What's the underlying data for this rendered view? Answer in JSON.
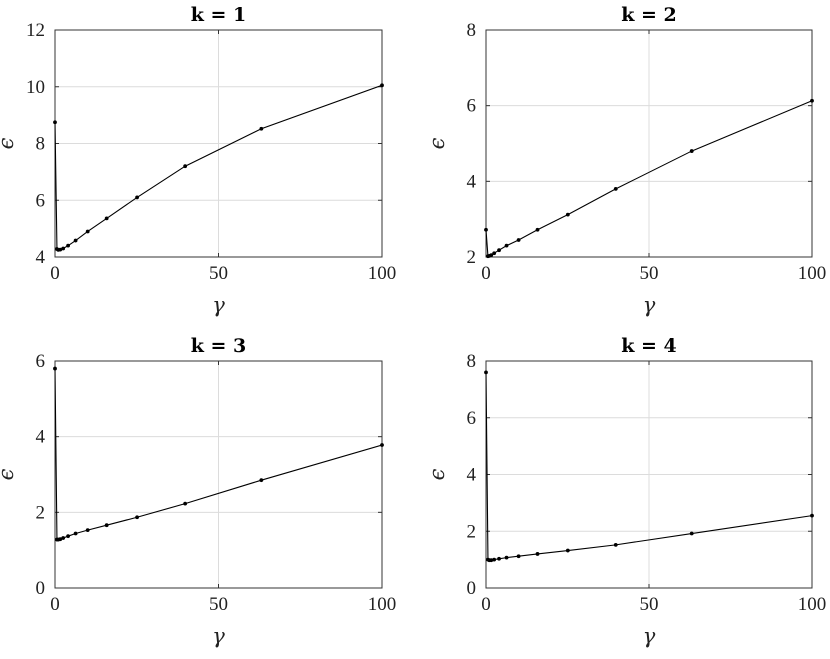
{
  "chart_data": [
    {
      "type": "line",
      "title": "k = 1",
      "xlabel": "γ",
      "ylabel": "ϵ",
      "xlim": [
        0,
        100
      ],
      "ylim": [
        4,
        12
      ],
      "xticks": [
        0,
        50,
        100
      ],
      "yticks": [
        4,
        6,
        8,
        10,
        12
      ],
      "grid": true,
      "series": [
        {
          "x": [
            0.0,
            0.6,
            1.0,
            1.6,
            2.5,
            4.0,
            6.3,
            10.0,
            15.8,
            25.1,
            39.8,
            63.1,
            100.0
          ],
          "y": [
            8.75,
            4.28,
            4.25,
            4.26,
            4.3,
            4.4,
            4.58,
            4.9,
            5.36,
            6.1,
            7.2,
            8.52,
            10.05
          ]
        }
      ]
    },
    {
      "type": "line",
      "title": "k = 2",
      "xlabel": "γ",
      "ylabel": "ϵ",
      "xlim": [
        0,
        100
      ],
      "ylim": [
        2,
        8
      ],
      "xticks": [
        0,
        50,
        100
      ],
      "yticks": [
        2,
        4,
        6,
        8
      ],
      "grid": true,
      "series": [
        {
          "x": [
            0.0,
            0.6,
            1.0,
            1.6,
            2.5,
            4.0,
            6.3,
            10.0,
            15.8,
            25.1,
            39.8,
            63.1,
            100.0
          ],
          "y": [
            2.72,
            2.02,
            2.03,
            2.05,
            2.1,
            2.18,
            2.3,
            2.45,
            2.72,
            3.12,
            3.8,
            4.8,
            6.13
          ]
        }
      ]
    },
    {
      "type": "line",
      "title": "k = 3",
      "xlabel": "γ",
      "ylabel": "ϵ",
      "xlim": [
        0,
        100
      ],
      "ylim": [
        0,
        6
      ],
      "xticks": [
        0,
        50,
        100
      ],
      "yticks": [
        0,
        2,
        4,
        6
      ],
      "grid": true,
      "series": [
        {
          "x": [
            0.0,
            0.6,
            1.0,
            1.6,
            2.5,
            4.0,
            6.3,
            10.0,
            15.8,
            25.1,
            39.8,
            63.1,
            100.0
          ],
          "y": [
            5.8,
            1.28,
            1.28,
            1.29,
            1.32,
            1.37,
            1.44,
            1.53,
            1.66,
            1.87,
            2.23,
            2.85,
            3.78
          ]
        }
      ]
    },
    {
      "type": "line",
      "title": "k = 4",
      "xlabel": "γ",
      "ylabel": "ϵ",
      "xlim": [
        0,
        100
      ],
      "ylim": [
        0,
        8
      ],
      "xticks": [
        0,
        50,
        100
      ],
      "yticks": [
        0,
        2,
        4,
        6,
        8
      ],
      "grid": true,
      "series": [
        {
          "x": [
            0.0,
            0.6,
            1.0,
            1.6,
            2.5,
            4.0,
            6.3,
            10.0,
            15.8,
            25.1,
            39.8,
            63.1,
            100.0
          ],
          "y": [
            7.6,
            1.0,
            0.98,
            0.98,
            1.0,
            1.03,
            1.07,
            1.12,
            1.2,
            1.32,
            1.52,
            1.92,
            2.55
          ]
        }
      ]
    }
  ],
  "colors": {
    "line": "#000000",
    "grid": "#dcdcdc",
    "frame": "#333333",
    "background": "#ffffff"
  }
}
